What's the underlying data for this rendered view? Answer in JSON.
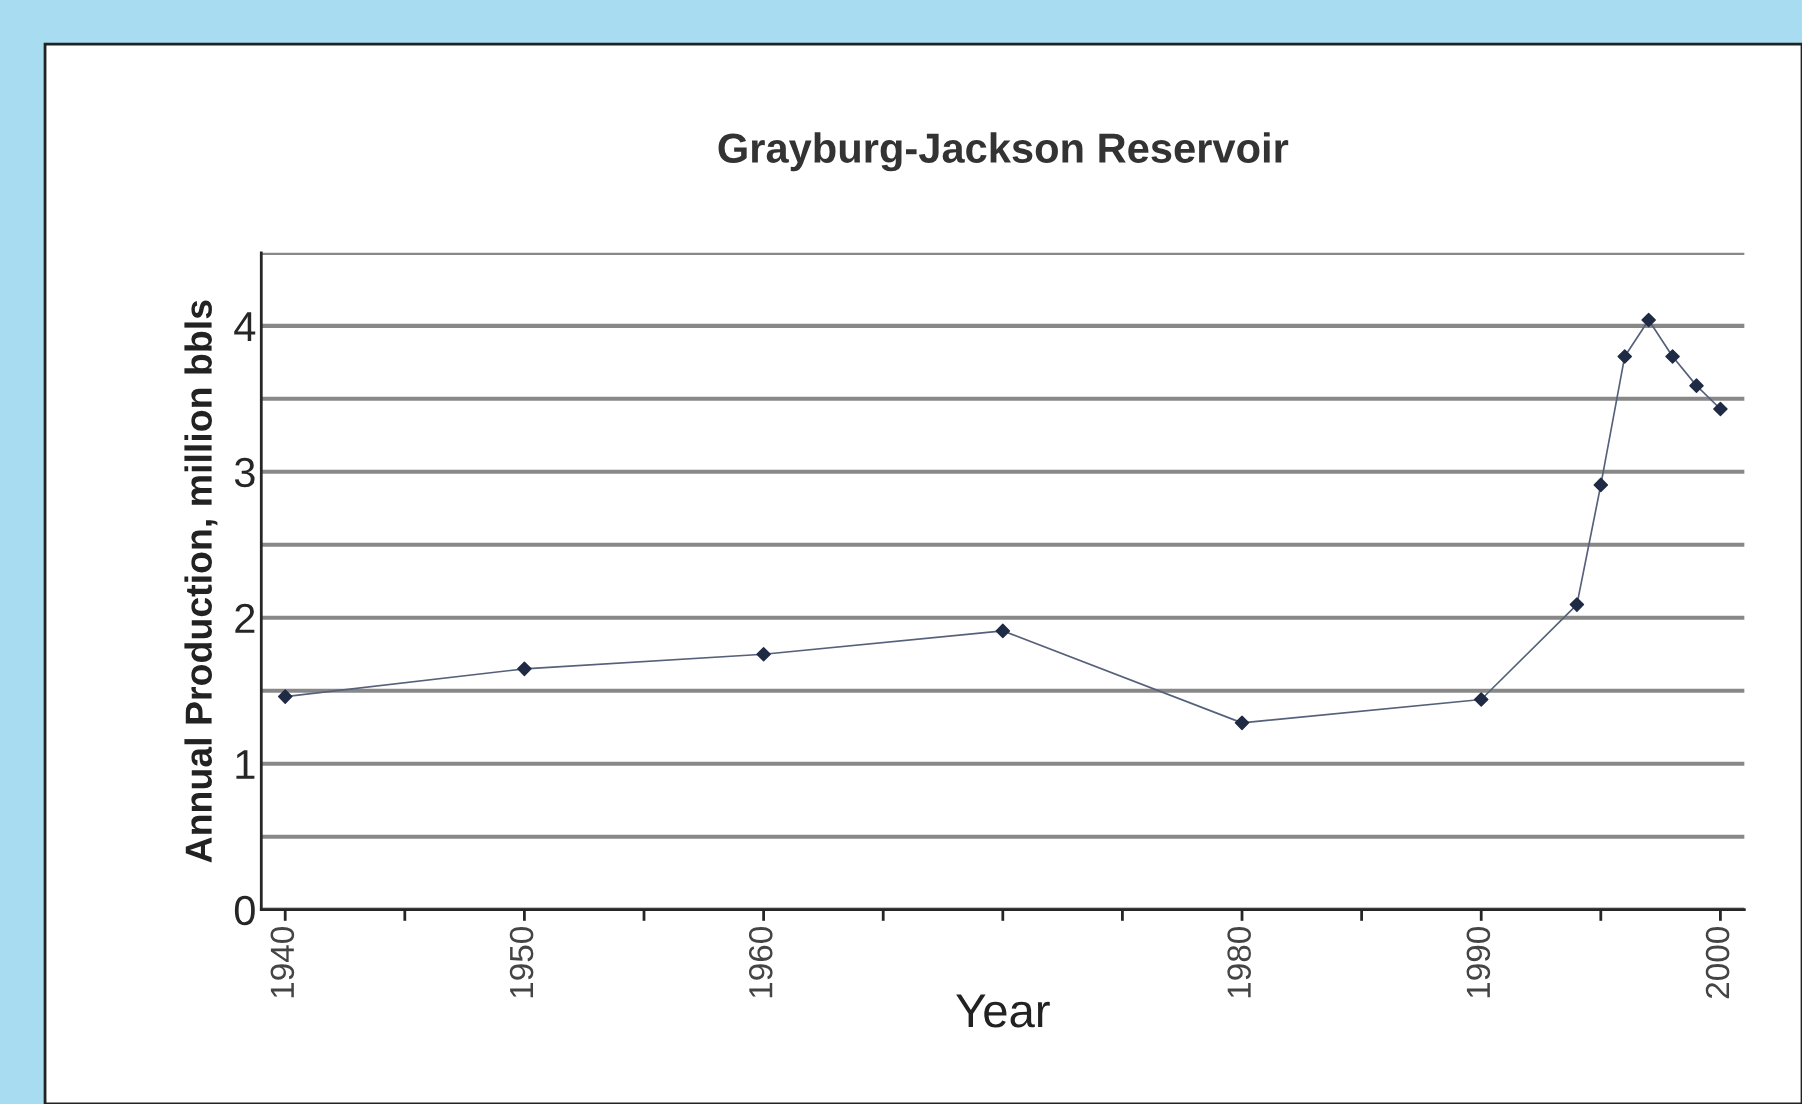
{
  "chart_data": {
    "type": "line",
    "title": "Grayburg-Jackson Reservoir",
    "xlabel": "Year",
    "ylabel": "Annual Production, million bbls",
    "x": [
      1940,
      1950,
      1960,
      1970,
      1980,
      1990,
      1994,
      1995,
      1996,
      1997,
      1998,
      1999,
      2000
    ],
    "series": [
      {
        "color": "#1f2a44",
        "values": [
          1.46,
          1.65,
          1.75,
          1.91,
          1.28,
          1.44,
          2.09,
          2.91,
          3.79,
          4.04,
          3.79,
          3.59,
          3.43
        ]
      }
    ],
    "xlim": [
      1939,
      2001
    ],
    "xticks": [
      1940,
      {
        "value": 1945,
        "label": null
      },
      1950,
      {
        "value": 1955,
        "label": null
      },
      1960,
      {
        "value": 1965,
        "label": null
      },
      {
        "value": 1970,
        "label": null
      },
      {
        "value": 1975,
        "label": null
      },
      1980,
      {
        "value": 1985,
        "label": null
      },
      1990,
      {
        "value": 1995,
        "label": null
      },
      2000
    ],
    "ylim": [
      0,
      4.5
    ],
    "yticks": [
      0,
      {
        "value": 0.5,
        "label": null
      },
      1,
      {
        "value": 1.5,
        "label": null
      },
      2,
      {
        "value": 2.5,
        "label": null
      },
      3,
      {
        "value": 3.5,
        "label": null
      },
      4,
      {
        "value": 4.5,
        "label": null
      }
    ],
    "grid": "y",
    "marker": "diamond",
    "line_style": "solid"
  }
}
